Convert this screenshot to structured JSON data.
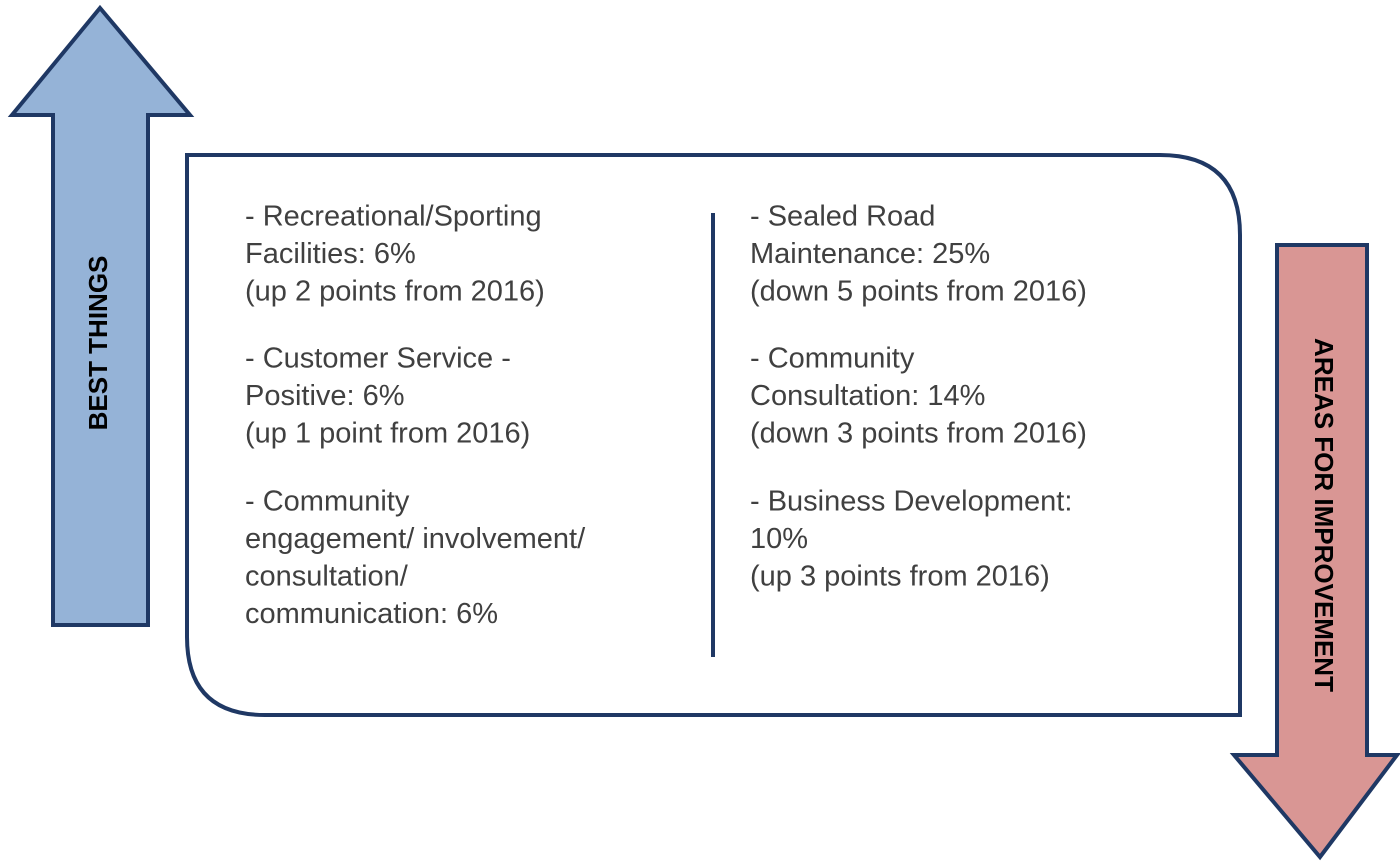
{
  "left_arrow": {
    "label": "BEST THINGS"
  },
  "right_arrow": {
    "label": "AREAS FOR IMPROVEMENT"
  },
  "left_column": {
    "items": [
      {
        "lines": [
          "- Recreational/Sporting",
          "Facilities: 6%",
          "(up 2 points from 2016)"
        ]
      },
      {
        "lines": [
          "- Customer Service -",
          "Positive: 6%",
          "(up 1 point from 2016)"
        ]
      },
      {
        "lines": [
          "- Community",
          "engagement/ involvement/",
          "consultation/",
          "communication: 6%"
        ]
      }
    ]
  },
  "right_column": {
    "items": [
      {
        "lines": [
          "- Sealed Road",
          "Maintenance: 25%",
          "(down 5 points from 2016)"
        ]
      },
      {
        "lines": [
          "- Community",
          "Consultation: 14%",
          "(down 3 points from 2016)"
        ]
      },
      {
        "lines": [
          "- Business Development:",
          "10%",
          "(up 3 points from 2016)"
        ]
      }
    ]
  }
}
